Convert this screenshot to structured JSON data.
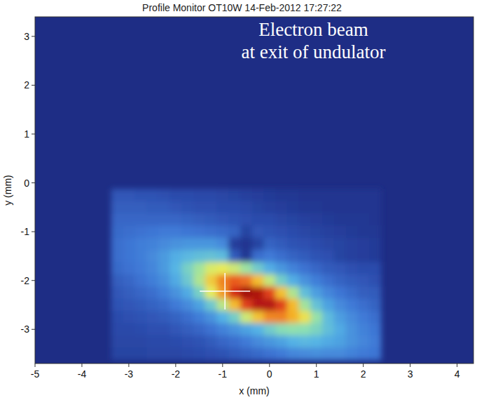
{
  "chart_data": {
    "type": "heatmap",
    "title": "Profile Monitor OT10W 14-Feb-2012 17:27:22",
    "annotation": [
      "Electron beam",
      "at exit of undulator"
    ],
    "x_label": "x (mm)",
    "y_label": "y (mm)",
    "xlim": [
      -5,
      4.35
    ],
    "ylim": [
      -3.7,
      3.4
    ],
    "xticks": [
      -5,
      -4,
      -3,
      -2,
      -1,
      0,
      1,
      2,
      3,
      4
    ],
    "yticks": [
      -3,
      -2,
      -1,
      0,
      1,
      2,
      3
    ],
    "x": [
      -3.25,
      -3.0,
      -2.75,
      -2.5,
      -2.25,
      -2.0,
      -1.75,
      -1.5,
      -1.25,
      -1.0,
      -0.75,
      -0.5,
      -0.25,
      0,
      0.25,
      0.5,
      0.75,
      1.0,
      1.25,
      1.5,
      1.75,
      2.0,
      2.25
    ],
    "y": [
      -0.25,
      -0.5,
      -0.75,
      -1.0,
      -1.25,
      -1.5,
      -1.75,
      -2.0,
      -2.25,
      -2.5,
      -2.75,
      -3.0,
      -3.25,
      -3.5
    ],
    "z": [
      [
        14,
        14,
        13,
        13,
        12,
        11,
        11,
        10,
        10,
        9,
        8,
        7,
        6,
        5,
        4,
        4,
        3,
        3,
        3,
        3,
        3,
        3,
        3
      ],
      [
        16,
        16,
        16,
        15,
        15,
        14,
        13,
        12,
        12,
        11,
        11,
        10,
        8,
        7,
        6,
        5,
        4,
        4,
        3,
        3,
        3,
        3,
        3
      ],
      [
        18,
        18,
        18,
        18,
        18,
        18,
        17,
        16,
        15,
        14,
        13,
        12,
        11,
        11,
        9,
        8,
        7,
        6,
        5,
        4,
        4,
        4,
        3
      ],
      [
        19,
        20,
        21,
        22,
        23,
        23,
        22,
        21,
        20,
        19,
        17,
        8,
        14,
        13,
        12,
        11,
        9,
        8,
        7,
        6,
        5,
        4,
        4
      ],
      [
        20,
        22,
        24,
        25,
        27,
        29,
        30,
        30,
        30,
        27,
        6,
        3,
        8,
        17,
        15,
        13,
        12,
        11,
        9,
        8,
        7,
        6,
        5
      ],
      [
        20,
        22,
        24,
        27,
        31,
        36,
        39,
        41,
        42,
        40,
        15,
        4,
        20,
        23,
        20,
        17,
        15,
        13,
        12,
        8,
        7,
        6,
        5
      ],
      [
        19,
        21,
        23,
        26,
        31,
        38,
        47,
        56,
        65,
        68,
        63,
        55,
        45,
        36,
        30,
        25,
        21,
        18,
        15,
        14,
        12,
        11,
        11
      ],
      [
        16,
        18,
        21,
        24,
        28,
        35,
        44,
        58,
        81,
        101,
        110,
        105,
        86,
        61,
        46,
        36,
        29,
        24,
        20,
        17,
        15,
        14,
        12
      ],
      [
        14,
        16,
        18,
        20,
        24,
        29,
        35,
        47,
        67,
        96,
        129,
        150,
        145,
        118,
        85,
        58,
        41,
        32,
        26,
        22,
        19,
        16,
        15
      ],
      [
        13,
        14,
        15,
        17,
        19,
        23,
        27,
        33,
        44,
        60,
        87,
        120,
        143,
        144,
        120,
        88,
        56,
        42,
        33,
        27,
        23,
        20,
        17
      ],
      [
        11,
        12,
        13,
        14,
        15,
        17,
        20,
        24,
        29,
        37,
        46,
        63,
        84,
        100,
        101,
        91,
        72,
        54,
        40,
        32,
        27,
        23,
        20
      ],
      [
        10,
        10,
        11,
        12,
        12,
        14,
        16,
        18,
        21,
        25,
        29,
        33,
        37,
        45,
        51,
        53,
        52,
        48,
        41,
        35,
        29,
        25,
        22
      ],
      [
        9,
        9,
        9,
        10,
        10,
        11,
        12,
        13,
        15,
        18,
        20,
        23,
        27,
        30,
        33,
        37,
        39,
        38,
        35,
        33,
        29,
        26,
        23
      ],
      [
        8,
        8,
        8,
        9,
        9,
        9,
        10,
        11,
        12,
        13,
        15,
        17,
        19,
        21,
        23,
        26,
        27,
        28,
        27,
        27,
        25,
        23,
        22
      ]
    ],
    "zlim": [
      0,
      150
    ],
    "centroid": [
      -0.95,
      -2.22
    ]
  }
}
